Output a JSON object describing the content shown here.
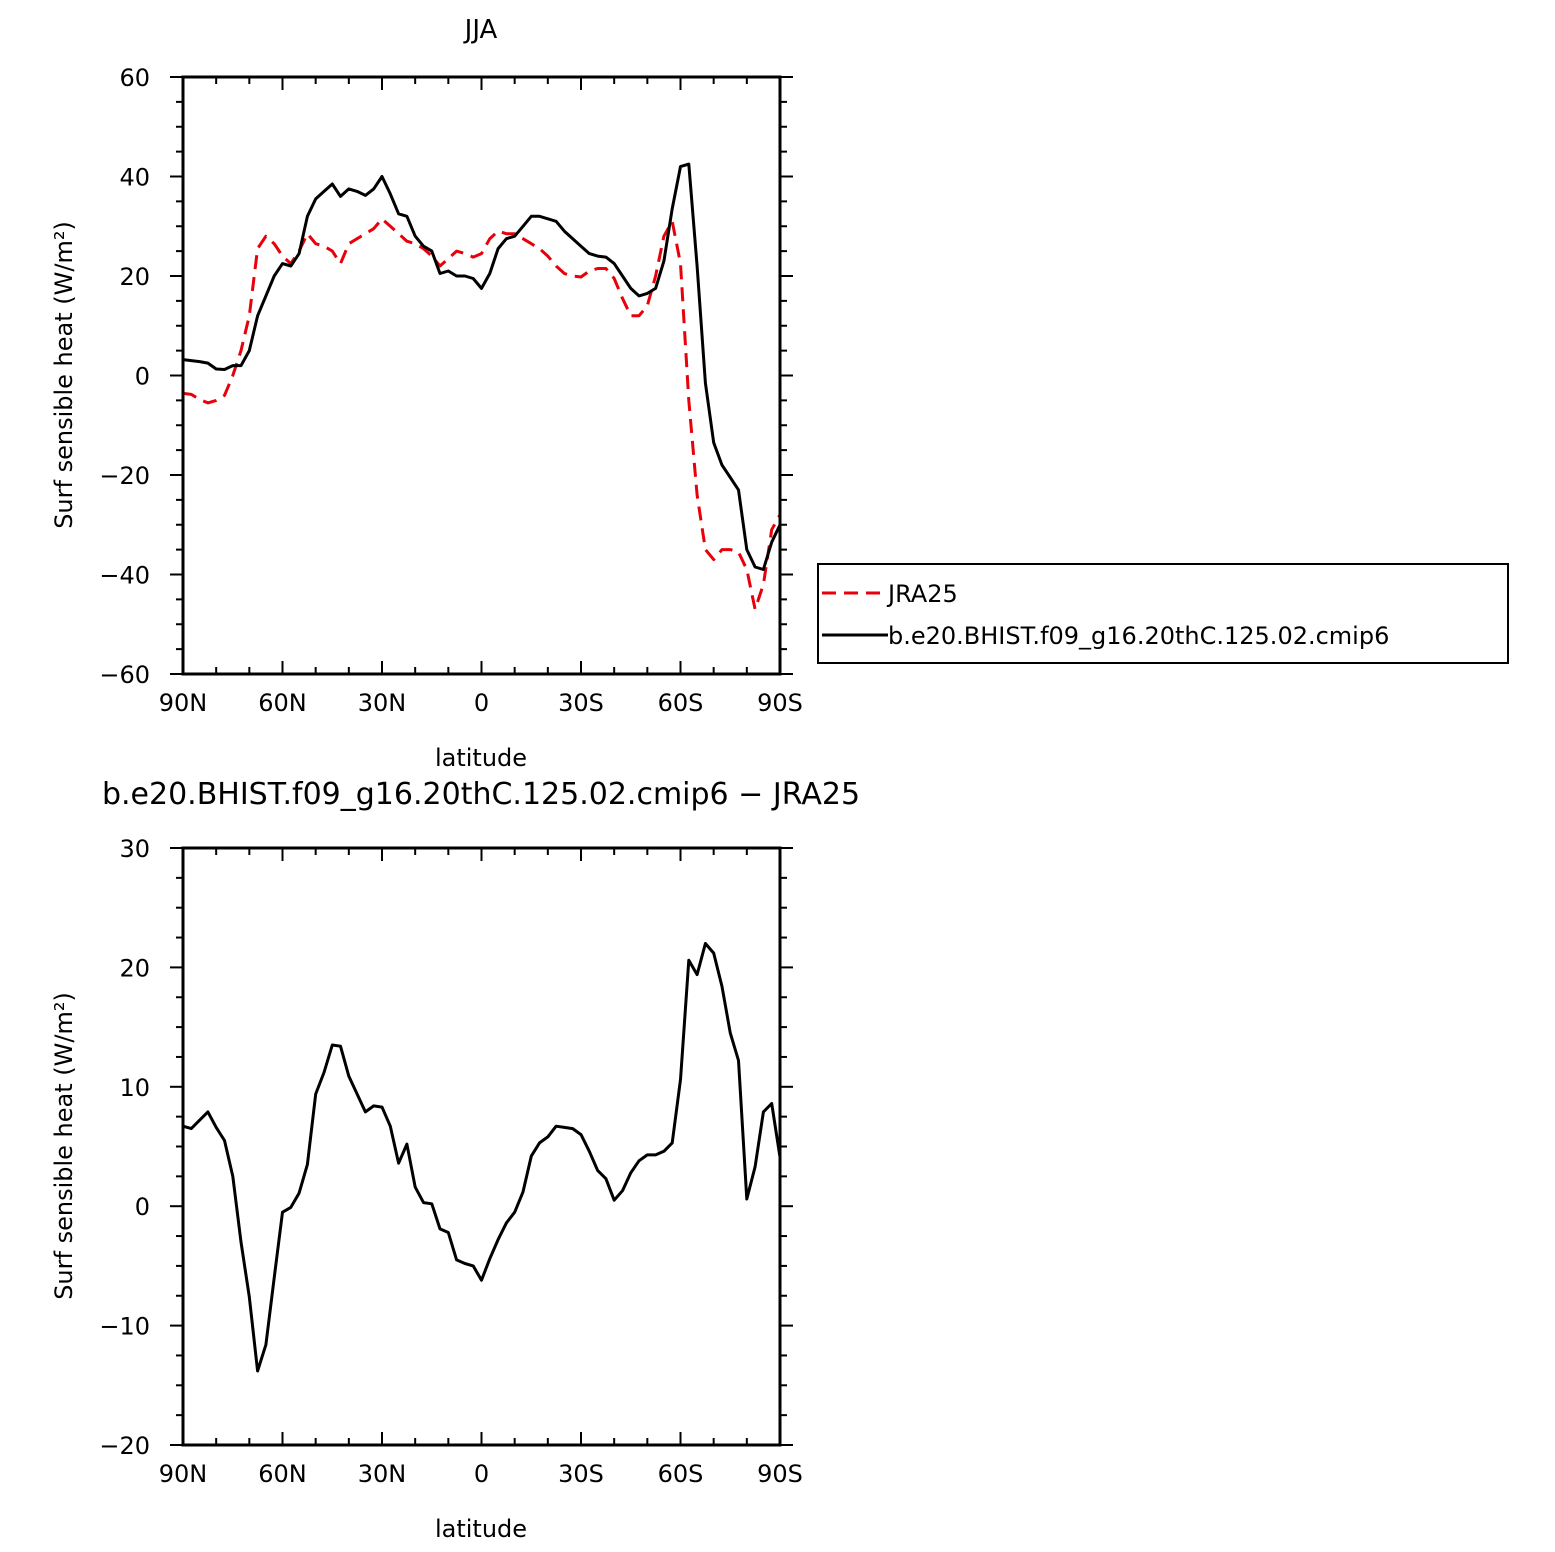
{
  "chart_data": [
    {
      "type": "line",
      "title": "JJA",
      "xlabel": "latitude",
      "ylabel": "Surf sensible heat (W/m²)",
      "xlim": [
        90,
        -90
      ],
      "ylim": [
        -60,
        60
      ],
      "x_ticks": [
        {
          "value": 90,
          "label": "90N"
        },
        {
          "value": 60,
          "label": "60N"
        },
        {
          "value": 30,
          "label": "30N"
        },
        {
          "value": 0,
          "label": "0"
        },
        {
          "value": -30,
          "label": "30S"
        },
        {
          "value": -60,
          "label": "60S"
        },
        {
          "value": -90,
          "label": "90S"
        }
      ],
      "y_ticks": [
        {
          "value": 60,
          "label": "60"
        },
        {
          "value": 40,
          "label": "40"
        },
        {
          "value": 20,
          "label": "20"
        },
        {
          "value": 0,
          "label": "0"
        },
        {
          "value": -20,
          "label": "−20"
        },
        {
          "value": -40,
          "label": "−40"
        },
        {
          "value": -60,
          "label": "−60"
        }
      ],
      "grid": false,
      "legend_position": "right",
      "series": [
        {
          "name": "JRA25",
          "color": "#e8000b",
          "style": "dashed",
          "x": [
            90,
            87.5,
            85,
            82.5,
            80,
            77.5,
            75,
            72.5,
            70,
            67.5,
            65,
            62.5,
            60,
            57.5,
            55,
            52.5,
            50,
            47.5,
            45,
            42.5,
            40,
            37.5,
            35,
            32.5,
            30,
            27.5,
            25,
            22.5,
            20,
            17.5,
            15,
            12.5,
            10,
            7.5,
            5,
            2.5,
            0,
            -2.5,
            -5,
            -7.5,
            -10,
            -12.5,
            -15,
            -17.5,
            -20,
            -22.5,
            -25,
            -27.5,
            -30,
            -32.5,
            -35,
            -37.5,
            -40,
            -42.5,
            -45,
            -47.5,
            -50,
            -52.5,
            -55,
            -57.5,
            -60,
            -62.5,
            -65,
            -67.5,
            -70,
            -72.5,
            -75,
            -77.5,
            -80,
            -82.5,
            -85,
            -87.5,
            -90
          ],
          "y": [
            -3.6,
            -3.8,
            -4.8,
            -5.5,
            -5,
            -4,
            0,
            5,
            12,
            25.5,
            28,
            26.5,
            24,
            22.5,
            25,
            28.5,
            26.5,
            26,
            25,
            22.5,
            26.5,
            27.5,
            28.5,
            29.5,
            31.5,
            30,
            28.5,
            27,
            26.5,
            25.5,
            24,
            22,
            23.5,
            25,
            24.5,
            23.8,
            24.5,
            27.5,
            29,
            28.5,
            28.5,
            27.5,
            26.5,
            25.5,
            24,
            22,
            20.5,
            20,
            19.8,
            21,
            21.5,
            21.5,
            19.5,
            15.5,
            12,
            12,
            14,
            20,
            28,
            31,
            22.5,
            -5,
            -24,
            -35,
            -37,
            -35,
            -35,
            -35.5,
            -39,
            -47,
            -42,
            -31,
            -28
          ]
        },
        {
          "name": "b.e20.BHIST.f09_g16.20thC.125.02.cmip6",
          "color": "#000000",
          "style": "solid",
          "x": [
            90,
            87.5,
            85,
            82.5,
            80,
            77.5,
            75,
            72.5,
            70,
            67.5,
            65,
            62.5,
            60,
            57.5,
            55,
            52.5,
            50,
            47.5,
            45,
            42.5,
            40,
            37.5,
            35,
            32.5,
            30,
            27.5,
            25,
            22.5,
            20,
            17.5,
            15,
            12.5,
            10,
            7.5,
            5,
            2.5,
            0,
            -2.5,
            -5,
            -7.5,
            -10,
            -12.5,
            -15,
            -17.5,
            -20,
            -22.5,
            -25,
            -27.5,
            -30,
            -32.5,
            -35,
            -37.5,
            -40,
            -42.5,
            -45,
            -47.5,
            -50,
            -52.5,
            -55,
            -57.5,
            -60,
            -62.5,
            -65,
            -67.5,
            -70,
            -72.5,
            -75,
            -77.5,
            -80,
            -82.5,
            -85,
            -87.5,
            -90
          ],
          "y": [
            3.2,
            3,
            2.8,
            2.5,
            1.3,
            1.2,
            2,
            2,
            5,
            12,
            16,
            20,
            22.5,
            22,
            24.5,
            32,
            35.5,
            37,
            38.5,
            36,
            37.5,
            37,
            36.2,
            37.5,
            40,
            36.5,
            32.5,
            32,
            28,
            26,
            25,
            20.5,
            21,
            20,
            20,
            19.5,
            17.5,
            20.5,
            25.5,
            27.5,
            28,
            30,
            32,
            32,
            31.5,
            31,
            29,
            27.5,
            26,
            24.5,
            24,
            23.8,
            22.5,
            20,
            17.5,
            16,
            16.5,
            17.5,
            23,
            33.5,
            42,
            42.5,
            22,
            -1.5,
            -13.5,
            -18,
            -20.5,
            -23,
            -35,
            -38.5,
            -39,
            -33.5,
            -30
          ]
        }
      ]
    },
    {
      "type": "line",
      "title": "b.e20.BHIST.f09_g16.20thC.125.02.cmip6 − JRA25",
      "xlabel": "latitude",
      "ylabel": "Surf sensible heat (W/m²)",
      "xlim": [
        90,
        -90
      ],
      "ylim": [
        -20,
        30
      ],
      "x_ticks": [
        {
          "value": 90,
          "label": "90N"
        },
        {
          "value": 60,
          "label": "60N"
        },
        {
          "value": 30,
          "label": "30N"
        },
        {
          "value": 0,
          "label": "0"
        },
        {
          "value": -30,
          "label": "30S"
        },
        {
          "value": -60,
          "label": "60S"
        },
        {
          "value": -90,
          "label": "90S"
        }
      ],
      "y_ticks": [
        {
          "value": 30,
          "label": "30"
        },
        {
          "value": 20,
          "label": "20"
        },
        {
          "value": 10,
          "label": "10"
        },
        {
          "value": 0,
          "label": "0"
        },
        {
          "value": -10,
          "label": "−10"
        },
        {
          "value": -20,
          "label": "−20"
        }
      ],
      "grid": false,
      "series": [
        {
          "name": "",
          "color": "#000000",
          "style": "solid",
          "x": [
            90,
            87.5,
            85,
            82.5,
            80,
            77.5,
            75,
            72.5,
            70,
            67.5,
            65,
            62.5,
            60,
            57.5,
            55,
            52.5,
            50,
            47.5,
            45,
            42.5,
            40,
            37.5,
            35,
            32.5,
            30,
            27.5,
            25,
            22.5,
            20,
            17.5,
            15,
            12.5,
            10,
            7.5,
            5,
            2.5,
            0,
            -2.5,
            -5,
            -7.5,
            -10,
            -12.5,
            -15,
            -17.5,
            -20,
            -22.5,
            -25,
            -27.5,
            -30,
            -32.5,
            -35,
            -37.5,
            -40,
            -42.5,
            -45,
            -47.5,
            -50,
            -52.5,
            -55,
            -57.5,
            -60,
            -62.5,
            -65,
            -67.5,
            -70,
            -72.5,
            -75,
            -77.5,
            -80,
            -82.5,
            -85,
            -87.5,
            -90
          ],
          "y": [
            6.7,
            6.5,
            7.2,
            7.9,
            6.6,
            5.5,
            2.5,
            -3,
            -7.6,
            -13.8,
            -11.6,
            -6,
            -0.5,
            -0.1,
            1.1,
            3.5,
            9.4,
            11.2,
            13.5,
            13.4,
            10.9,
            9.4,
            7.9,
            8.4,
            8.3,
            6.7,
            3.6,
            5.2,
            1.6,
            0.3,
            0.2,
            -1.9,
            -2.2,
            -4.5,
            -4.8,
            -5,
            -6.2,
            -4.4,
            -2.8,
            -1.4,
            -0.5,
            1.2,
            4.2,
            5.3,
            5.8,
            6.7,
            6.6,
            6.5,
            6,
            4.6,
            3,
            2.3,
            0.5,
            1.3,
            2.8,
            3.8,
            4.3,
            4.3,
            4.6,
            5.3,
            10.6,
            20.6,
            19.4,
            22,
            21.2,
            18.4,
            14.5,
            12.2,
            0.6,
            3.3,
            7.9,
            8.6,
            4.1
          ]
        }
      ]
    }
  ]
}
